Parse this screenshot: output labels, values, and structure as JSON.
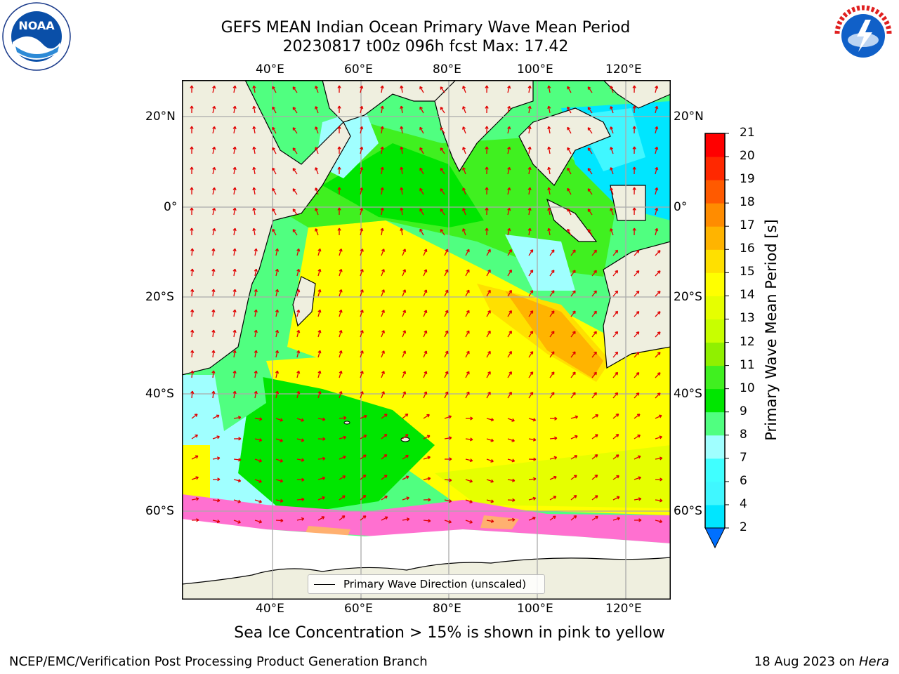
{
  "header": {
    "title_line1": "GEFS MEAN Indian Ocean Primary Wave Mean Period",
    "title_line2": "20230817 t00z 096h fcst   Max: 17.42"
  },
  "axes": {
    "lon_labels": [
      "40°E",
      "60°E",
      "80°E",
      "100°E",
      "120°E"
    ],
    "lat_labels": [
      "20°N",
      "0°",
      "20°S",
      "40°S",
      "60°S"
    ]
  },
  "legend": {
    "label": "Primary Wave Direction (unscaled)"
  },
  "colorbar": {
    "label": "Primary Wave Mean Period [s]",
    "ticks": [
      "2",
      "4",
      "6",
      "7",
      "8",
      "9",
      "10",
      "11",
      "12",
      "13",
      "14",
      "15",
      "16",
      "17",
      "18",
      "19",
      "20",
      "21"
    ],
    "colors": [
      "#0070ff",
      "#00e6ff",
      "#40f7ff",
      "#40ffff",
      "#a0ffff",
      "#50ff80",
      "#00e600",
      "#40f020",
      "#90f000",
      "#c8ff00",
      "#e6ff00",
      "#ffff00",
      "#ffe000",
      "#ffb400",
      "#ff8c00",
      "#ff5a00",
      "#ff2800",
      "#ff0000"
    ]
  },
  "logos": {
    "left": "NOAA",
    "right": "NATIONAL WEATHER SERVICE"
  },
  "caption": "Sea Ice Concentration > 15% is shown in pink to yellow",
  "footer": {
    "left": "NCEP/EMC/Verification Post Processing Product Generation Branch",
    "right_date": "18 Aug 2023 on ",
    "right_host": "Hera"
  }
}
